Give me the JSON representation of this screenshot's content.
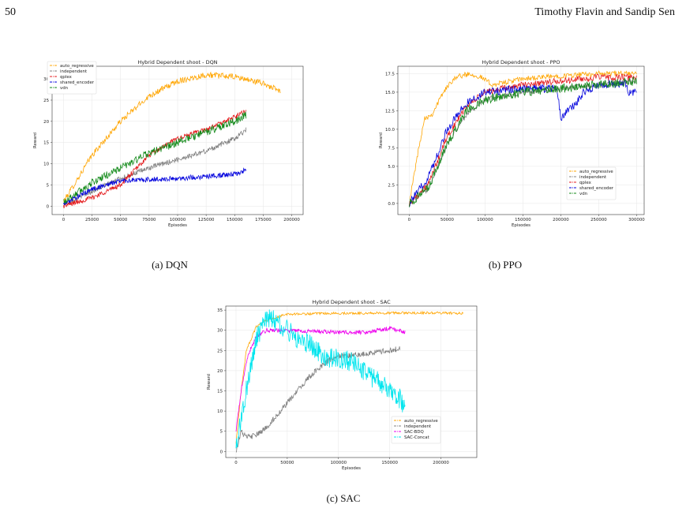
{
  "header": {
    "page_number": "50",
    "running_head": "Timothy Flavin and Sandip Sen"
  },
  "captions": {
    "a": "(a) DQN",
    "b": "(b) PPO",
    "c": "(c) SAC"
  },
  "chart_data": [
    {
      "id": "dqn",
      "type": "line",
      "title": "Hybrid Dependent shoot - DQN",
      "xlabel": "Episodes",
      "ylabel": "Reward",
      "xlim": [
        -10000,
        210000
      ],
      "ylim": [
        -2,
        33
      ],
      "x_ticks": [
        0,
        25000,
        50000,
        75000,
        100000,
        125000,
        150000,
        175000,
        200000
      ],
      "y_ticks": [
        0,
        5,
        10,
        15,
        20,
        25,
        30
      ],
      "grid": true,
      "legend_position": "top-left",
      "series": [
        {
          "name": "auto_regressive",
          "color": "#ffa500",
          "noise": 0.7,
          "points": [
            [
              0,
              1
            ],
            [
              25000,
              12
            ],
            [
              50000,
              20
            ],
            [
              75000,
              26
            ],
            [
              100000,
              29.5
            ],
            [
              125000,
              31
            ],
            [
              150000,
              30.5
            ],
            [
              175000,
              29
            ],
            [
              190000,
              27
            ]
          ]
        },
        {
          "name": "independent",
          "color": "#808080",
          "noise": 0.6,
          "points": [
            [
              0,
              0.5
            ],
            [
              50000,
              6.5
            ],
            [
              75000,
              9
            ],
            [
              100000,
              11
            ],
            [
              125000,
              13
            ],
            [
              150000,
              16
            ],
            [
              160000,
              18
            ]
          ]
        },
        {
          "name": "qplex",
          "color": "#e41a1c",
          "noise": 0.6,
          "points": [
            [
              0,
              0
            ],
            [
              25000,
              2
            ],
            [
              50000,
              5
            ],
            [
              75000,
              12
            ],
            [
              100000,
              16
            ],
            [
              125000,
              18
            ],
            [
              150000,
              21
            ],
            [
              160000,
              22.5
            ]
          ]
        },
        {
          "name": "shared_encoder",
          "color": "#0000dd",
          "noise": 0.6,
          "points": [
            [
              0,
              0.5
            ],
            [
              25000,
              4
            ],
            [
              50000,
              6
            ],
            [
              100000,
              6.5
            ],
            [
              125000,
              7
            ],
            [
              150000,
              7.5
            ],
            [
              160000,
              8.5
            ]
          ]
        },
        {
          "name": "vdn",
          "color": "#138a1a",
          "noise": 0.9,
          "points": [
            [
              0,
              1
            ],
            [
              25000,
              5.5
            ],
            [
              50000,
              9
            ],
            [
              75000,
              12.5
            ],
            [
              100000,
              15
            ],
            [
              125000,
              17.5
            ],
            [
              150000,
              20
            ],
            [
              160000,
              21.5
            ]
          ]
        }
      ]
    },
    {
      "id": "ppo",
      "type": "line",
      "title": "Hybrid Dependent shoot - PPO",
      "xlabel": "Episodes",
      "ylabel": "Reward",
      "xlim": [
        -15000,
        310000
      ],
      "ylim": [
        -1.5,
        18.5
      ],
      "x_ticks": [
        0,
        50000,
        100000,
        150000,
        200000,
        250000,
        300000
      ],
      "y_ticks": [
        0,
        2.5,
        5,
        7.5,
        10,
        12.5,
        15,
        17.5
      ],
      "y_tick_labels": [
        "0.0",
        "2.5",
        "5.0",
        "7.5",
        "10.0",
        "12.5",
        "15.0",
        "17.5"
      ],
      "grid": true,
      "legend_position": "bottom-right",
      "series": [
        {
          "name": "auto_regressive",
          "color": "#ffa500",
          "noise": 0.35,
          "points": [
            [
              0,
              0
            ],
            [
              10000,
              6
            ],
            [
              20000,
              11.5
            ],
            [
              30000,
              12
            ],
            [
              45000,
              15
            ],
            [
              60000,
              17
            ],
            [
              80000,
              17.5
            ],
            [
              95000,
              17
            ],
            [
              110000,
              16
            ],
            [
              150000,
              16.8
            ],
            [
              200000,
              17.2
            ],
            [
              250000,
              17.5
            ],
            [
              300000,
              17.5
            ]
          ]
        },
        {
          "name": "independent",
          "color": "#808080",
          "noise": 0.4,
          "points": [
            [
              0,
              0
            ],
            [
              25000,
              2
            ],
            [
              50000,
              8
            ],
            [
              75000,
              12
            ],
            [
              100000,
              14
            ],
            [
              150000,
              15
            ],
            [
              200000,
              15.5
            ],
            [
              250000,
              16
            ],
            [
              300000,
              16.5
            ]
          ]
        },
        {
          "name": "qplex",
          "color": "#e41a1c",
          "noise": 0.45,
          "points": [
            [
              0,
              0
            ],
            [
              25000,
              2.5
            ],
            [
              50000,
              9
            ],
            [
              75000,
              13
            ],
            [
              100000,
              15
            ],
            [
              150000,
              16
            ],
            [
              200000,
              16.5
            ],
            [
              250000,
              17
            ],
            [
              300000,
              17
            ]
          ]
        },
        {
          "name": "shared_encoder",
          "color": "#0000dd",
          "noise": 0.55,
          "points": [
            [
              0,
              0
            ],
            [
              25000,
              3.5
            ],
            [
              50000,
              10
            ],
            [
              75000,
              13.5
            ],
            [
              100000,
              15
            ],
            [
              150000,
              15.5
            ],
            [
              195000,
              15.5
            ],
            [
              200000,
              11.5
            ],
            [
              210000,
              12.5
            ],
            [
              220000,
              13.5
            ],
            [
              230000,
              15
            ],
            [
              250000,
              16
            ],
            [
              285000,
              16.2
            ],
            [
              290000,
              15
            ],
            [
              300000,
              15
            ]
          ]
        },
        {
          "name": "vdn",
          "color": "#138a1a",
          "noise": 0.6,
          "points": [
            [
              0,
              0
            ],
            [
              25000,
              2
            ],
            [
              50000,
              8
            ],
            [
              75000,
              12.5
            ],
            [
              100000,
              14
            ],
            [
              150000,
              15
            ],
            [
              200000,
              15.5
            ],
            [
              250000,
              16
            ],
            [
              300000,
              16.5
            ]
          ]
        }
      ]
    },
    {
      "id": "sac",
      "type": "line",
      "title": "Hybrid Dependent shoot - SAC",
      "xlabel": "Episodes",
      "ylabel": "Reward",
      "xlim": [
        -10000,
        235000
      ],
      "ylim": [
        -1.5,
        36
      ],
      "x_ticks": [
        0,
        50000,
        100000,
        150000,
        200000
      ],
      "y_ticks": [
        0,
        5,
        10,
        15,
        20,
        25,
        30,
        35
      ],
      "grid": true,
      "legend_position": "bottom-right",
      "series": [
        {
          "name": "auto_regressive",
          "color": "#ffa500",
          "noise": 0.3,
          "points": [
            [
              0,
              2
            ],
            [
              5000,
              15
            ],
            [
              10000,
              25
            ],
            [
              20000,
              31
            ],
            [
              30000,
              32.5
            ],
            [
              50000,
              34
            ],
            [
              100000,
              34.2
            ],
            [
              150000,
              34.3
            ],
            [
              200000,
              34.3
            ],
            [
              222000,
              34.2
            ]
          ]
        },
        {
          "name": "independent",
          "color": "#808080",
          "noise": 0.7,
          "points": [
            [
              0,
              0
            ],
            [
              5000,
              5
            ],
            [
              10000,
              3.5
            ],
            [
              20000,
              4
            ],
            [
              30000,
              6
            ],
            [
              40000,
              9
            ],
            [
              50000,
              12
            ],
            [
              60000,
              15
            ],
            [
              70000,
              18
            ],
            [
              80000,
              20.5
            ],
            [
              90000,
              22.5
            ],
            [
              100000,
              23.5
            ],
            [
              120000,
              24
            ],
            [
              150000,
              25
            ],
            [
              160000,
              25.5
            ]
          ]
        },
        {
          "name": "SAC-BDQ",
          "color": "#ee00ee",
          "noise": 0.5,
          "points": [
            [
              0,
              5
            ],
            [
              5000,
              15
            ],
            [
              10000,
              22
            ],
            [
              15000,
              26
            ],
            [
              20000,
              28.5
            ],
            [
              30000,
              30
            ],
            [
              50000,
              30
            ],
            [
              100000,
              29.5
            ],
            [
              125000,
              29.5
            ],
            [
              150000,
              30.5
            ],
            [
              165000,
              29.5
            ]
          ]
        },
        {
          "name": "SAC-Concat",
          "color": "#00e5ee",
          "noise": 2.6,
          "points": [
            [
              0,
              1
            ],
            [
              10000,
              15
            ],
            [
              20000,
              28
            ],
            [
              30000,
              33
            ],
            [
              40000,
              32
            ],
            [
              50000,
              30
            ],
            [
              60000,
              28
            ],
            [
              70000,
              27
            ],
            [
              80000,
              25
            ],
            [
              90000,
              23
            ],
            [
              100000,
              23
            ],
            [
              110000,
              22.5
            ],
            [
              120000,
              21
            ],
            [
              130000,
              19
            ],
            [
              140000,
              17
            ],
            [
              150000,
              15
            ],
            [
              160000,
              13
            ],
            [
              165000,
              11
            ]
          ]
        }
      ]
    }
  ]
}
